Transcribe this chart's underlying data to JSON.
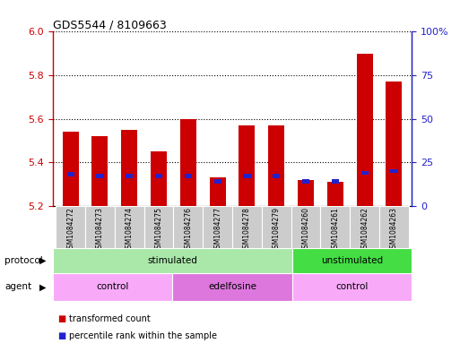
{
  "title": "GDS5544 / 8109663",
  "samples": [
    "GSM1084272",
    "GSM1084273",
    "GSM1084274",
    "GSM1084275",
    "GSM1084276",
    "GSM1084277",
    "GSM1084278",
    "GSM1084279",
    "GSM1084260",
    "GSM1084261",
    "GSM1084262",
    "GSM1084263"
  ],
  "transformed_count": [
    5.54,
    5.52,
    5.55,
    5.45,
    5.6,
    5.33,
    5.57,
    5.57,
    5.32,
    5.31,
    5.9,
    5.77
  ],
  "percentile_rank": [
    18,
    17,
    17,
    17,
    17,
    14,
    17,
    17,
    14,
    14,
    19,
    20
  ],
  "ylim_left": [
    5.2,
    6.0
  ],
  "ylim_right": [
    0,
    100
  ],
  "yticks_left": [
    5.2,
    5.4,
    5.6,
    5.8,
    6.0
  ],
  "yticks_right": [
    0,
    25,
    50,
    75,
    100
  ],
  "bar_color": "#cc0000",
  "pct_color": "#2222cc",
  "grid_color": "#000000",
  "bar_bottom": 5.2,
  "protocol_groups": [
    {
      "label": "stimulated",
      "start": 0,
      "end": 8,
      "color": "#aae8aa"
    },
    {
      "label": "unstimulated",
      "start": 8,
      "end": 12,
      "color": "#44dd44"
    }
  ],
  "agent_groups": [
    {
      "label": "control",
      "start": 0,
      "end": 4,
      "color": "#f8aaf8"
    },
    {
      "label": "edelfosine",
      "start": 4,
      "end": 8,
      "color": "#dd77dd"
    },
    {
      "label": "control",
      "start": 8,
      "end": 12,
      "color": "#f8aaf8"
    }
  ],
  "legend_items": [
    {
      "label": "transformed count",
      "color": "#cc0000"
    },
    {
      "label": "percentile rank within the sample",
      "color": "#2222cc"
    }
  ],
  "protocol_label": "protocol",
  "agent_label": "agent",
  "left_axis_color": "#cc0000",
  "right_axis_color": "#2222cc",
  "bg_color": "#ffffff",
  "bar_width": 0.55,
  "sample_bg_color": "#cccccc",
  "sample_font_size": 5.5
}
